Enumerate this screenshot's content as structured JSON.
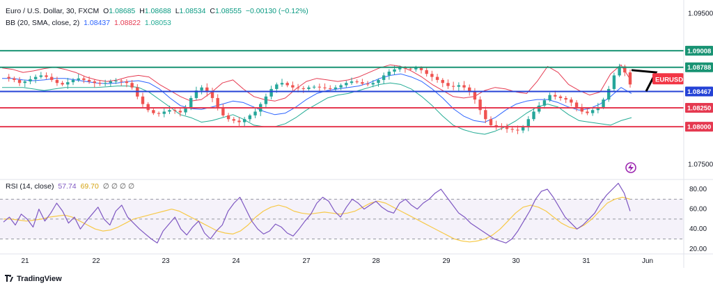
{
  "header": {
    "symbol": "Euro / U.S. Dollar, 30, FXCM",
    "o_label": "O",
    "o_value": "1.08685",
    "h_label": "H",
    "h_value": "1.08688",
    "l_label": "L",
    "l_value": "1.08534",
    "c_label": "C",
    "c_value": "1.08555",
    "change": "−0.00130 (−0.12%)",
    "bb_label": "BB (20, SMA, close, 2)",
    "bb_basis": "1.08437",
    "bb_upper": "1.08822",
    "bb_lower": "1.08053",
    "rsi_label": "RSI (14, close)",
    "rsi_value": "57.74",
    "rsi_ma": "69.70",
    "rsi_extra": "∅ ∅ ∅ ∅"
  },
  "colors": {
    "up": "#26a69a",
    "down": "#ef5350",
    "bb_upper": "#e53950",
    "bb_basis": "#2962ff",
    "bb_lower": "#22ab94",
    "rsi": "#7e57c2",
    "rsi_ma": "#f7c948",
    "resistance": "#189373",
    "support": "#e53950",
    "pivot": "#2442d6",
    "price_tag": "#f23645"
  },
  "chart_data": {
    "type": "candlestick",
    "price_axis_ticks": [
      "1.09500",
      "1.07500"
    ],
    "price_range": [
      1.073,
      1.0968
    ],
    "levels": [
      {
        "value": 1.09008,
        "label": "1.09008",
        "kind": "resistance"
      },
      {
        "value": 1.08788,
        "label": "1.08788",
        "kind": "resistance"
      },
      {
        "value": 1.08467,
        "label": "1.08467",
        "kind": "pivot"
      },
      {
        "value": 1.0825,
        "label": "1.08250",
        "kind": "support"
      },
      {
        "value": 1.08,
        "label": "1.08000",
        "kind": "support"
      }
    ],
    "symbol_tag": "EURUSD",
    "x_ticks": [
      "21",
      "22",
      "23",
      "24",
      "27",
      "28",
      "29",
      "30",
      "31",
      "Jun"
    ],
    "price_close_path": [
      1.0866,
      1.0864,
      1.0862,
      1.0858,
      1.086,
      1.0863,
      1.0866,
      1.0868,
      1.0866,
      1.0862,
      1.0858,
      1.0856,
      1.0859,
      1.0862,
      1.0864,
      1.0862,
      1.086,
      1.0858,
      1.0857,
      1.0858,
      1.086,
      1.0861,
      1.086,
      1.0858,
      1.0852,
      1.084,
      1.083,
      1.0822,
      1.0818,
      1.0817,
      1.082,
      1.0822,
      1.0821,
      1.0819,
      1.0825,
      1.0838,
      1.0848,
      1.0852,
      1.0846,
      1.0838,
      1.0826,
      1.0815,
      1.081,
      1.0808,
      1.0806,
      1.081,
      1.0815,
      1.082,
      1.083,
      1.084,
      1.085,
      1.0856,
      1.0858,
      1.0855,
      1.0852,
      1.0851,
      1.085,
      1.0852,
      1.0853,
      1.0852,
      1.0851,
      1.085,
      1.0852,
      1.0855,
      1.0858,
      1.086,
      1.0859,
      1.0857,
      1.0856,
      1.0858,
      1.0862,
      1.0868,
      1.0873,
      1.0876,
      1.0878,
      1.0877,
      1.0876,
      1.0878,
      1.0875,
      1.087,
      1.0866,
      1.0862,
      1.0858,
      1.0854,
      1.0853,
      1.0855,
      1.0852,
      1.0846,
      1.0836,
      1.0822,
      1.081,
      1.0802,
      1.08,
      1.0799,
      1.0797,
      1.0796,
      1.0795,
      1.08,
      1.081,
      1.082,
      1.0828,
      1.0835,
      1.0842,
      1.084,
      1.0838,
      1.0836,
      1.0832,
      1.0826,
      1.082,
      1.0818,
      1.0822,
      1.0826,
      1.0836,
      1.085,
      1.0868,
      1.088,
      1.0872,
      1.0856
    ],
    "bb_upper_path": [
      1.0878,
      1.0876,
      1.0872,
      1.0874,
      1.0877,
      1.0879,
      1.0876,
      1.0872,
      1.0866,
      1.0862,
      1.086,
      1.0862,
      1.0866,
      1.0868,
      1.0866,
      1.0856,
      1.0848,
      1.084,
      1.0834,
      1.0836,
      1.0846,
      1.0858,
      1.0862,
      1.085,
      1.084,
      1.0836,
      1.0834,
      1.0838,
      1.085,
      1.086,
      1.0864,
      1.0862,
      1.086,
      1.0862,
      1.0866,
      1.0872,
      1.0878,
      1.0882,
      1.088,
      1.0874,
      1.0866,
      1.0856,
      1.0848,
      1.084,
      1.0838,
      1.084,
      1.0848,
      1.0852,
      1.085,
      1.0846,
      1.0844,
      1.086,
      1.088,
      1.0872,
      1.0856,
      1.0848,
      1.0842,
      1.0846,
      1.087,
      1.0882,
      1.086
    ],
    "bb_basis_path": [
      1.0864,
      1.0864,
      1.0862,
      1.0861,
      1.0862,
      1.0864,
      1.0864,
      1.0862,
      1.086,
      1.0858,
      1.0857,
      1.0858,
      1.086,
      1.0861,
      1.0858,
      1.085,
      1.0838,
      1.0828,
      1.0824,
      1.0823,
      1.0826,
      1.083,
      1.0834,
      1.0832,
      1.0826,
      1.082,
      1.0816,
      1.0818,
      1.0826,
      1.0836,
      1.0844,
      1.0848,
      1.085,
      1.0852,
      1.0854,
      1.0858,
      1.0864,
      1.0868,
      1.087,
      1.0866,
      1.086,
      1.085,
      1.0838,
      1.0824,
      1.0814,
      1.0808,
      1.0806,
      1.0812,
      1.0822,
      1.083,
      1.0834,
      1.0836,
      1.0836,
      1.0832,
      1.0826,
      1.0822,
      1.0824,
      1.083,
      1.084,
      1.0852,
      1.0844
    ],
    "bb_lower_path": [
      1.0852,
      1.0852,
      1.0852,
      1.085,
      1.0848,
      1.085,
      1.0852,
      1.0852,
      1.0852,
      1.0852,
      1.0853,
      1.0854,
      1.0854,
      1.0852,
      1.0846,
      1.0836,
      1.0826,
      1.0816,
      1.0812,
      1.0806,
      1.0808,
      1.0812,
      1.0816,
      1.081,
      1.0802,
      1.08,
      1.08,
      1.0804,
      1.0812,
      1.0822,
      1.083,
      1.0838,
      1.0842,
      1.0844,
      1.0848,
      1.0852,
      1.0856,
      1.0858,
      1.0856,
      1.085,
      1.084,
      1.0828,
      1.0814,
      1.0802,
      1.0796,
      1.0792,
      1.079,
      1.0794,
      1.08,
      1.0808,
      1.0818,
      1.0826,
      1.083,
      1.0826,
      1.0816,
      1.0808,
      1.0806,
      1.0804,
      1.0802,
      1.0808,
      1.0812
    ],
    "rsi_axis_ticks": [
      "80.00",
      "60.00",
      "40.00",
      "20.00"
    ],
    "rsi_range": [
      15,
      87
    ],
    "rsi_bands": [
      70,
      50,
      30
    ],
    "rsi_path": [
      47,
      52,
      44,
      55,
      50,
      42,
      60,
      48,
      56,
      66,
      58,
      46,
      52,
      40,
      48,
      55,
      62,
      50,
      44,
      58,
      64,
      52,
      46,
      40,
      35,
      30,
      26,
      38,
      45,
      52,
      40,
      34,
      42,
      48,
      36,
      30,
      38,
      44,
      58,
      66,
      72,
      60,
      48,
      40,
      35,
      38,
      45,
      42,
      36,
      33,
      40,
      48,
      55,
      66,
      72,
      68,
      58,
      52,
      62,
      70,
      66,
      60,
      64,
      68,
      62,
      58,
      56,
      66,
      70,
      64,
      60,
      66,
      70,
      76,
      80,
      72,
      64,
      56,
      52,
      46,
      42,
      38,
      34,
      30,
      28,
      26,
      30,
      38,
      48,
      58,
      70,
      78,
      80,
      72,
      62,
      52,
      46,
      40,
      44,
      50,
      56,
      66,
      74,
      80,
      86,
      76,
      58
    ],
    "rsi_ma_path": [
      50,
      50,
      49,
      48,
      49,
      50,
      52,
      53,
      54,
      52,
      48,
      44,
      40,
      38,
      39,
      42,
      46,
      50,
      52,
      54,
      56,
      58,
      60,
      58,
      54,
      50,
      46,
      42,
      38,
      36,
      35,
      38,
      44,
      52,
      58,
      62,
      64,
      62,
      58,
      56,
      55,
      56,
      57,
      56,
      55,
      56,
      58,
      62,
      66,
      68,
      66,
      62,
      58,
      54,
      50,
      46,
      42,
      38,
      34,
      30,
      28,
      27,
      28,
      30,
      34,
      40,
      48,
      56,
      62,
      64,
      62,
      58,
      52,
      46,
      42,
      40,
      44,
      50,
      58,
      66,
      70,
      72,
      70
    ]
  },
  "brand": "TradingView"
}
